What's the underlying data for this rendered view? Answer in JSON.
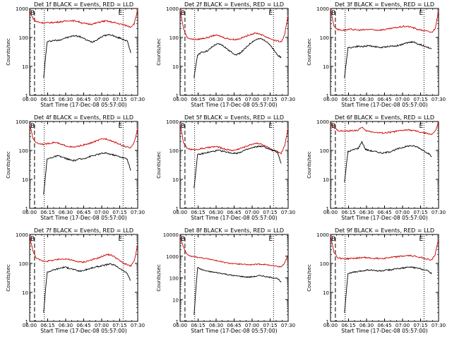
{
  "chart_data": [
    {
      "type": "line",
      "title": "Det 1f BLACK = Events, RED = LLD",
      "xlabel": "Start Time (17-Dec-08 05:57:00)",
      "ylabel": "Counts/sec",
      "x_ticks": [
        "06:00",
        "06:15",
        "06:30",
        "06:45",
        "07:00",
        "07:15",
        "07:30"
      ],
      "y_ticks": [
        "1",
        "10",
        "100",
        "1000"
      ],
      "y_scale": "log",
      "ylim": [
        1,
        1000
      ],
      "markers": [
        "B",
        "E"
      ],
      "series": [
        {
          "color": "#000000",
          "values": [
            null,
            null,
            null,
            null,
            4,
            70,
            75,
            80,
            78,
            85,
            95,
            100,
            110,
            115,
            110,
            100,
            85,
            75,
            70,
            80,
            95,
            110,
            120,
            125,
            115,
            100,
            95,
            85,
            75,
            30,
            null,
            null
          ]
        },
        {
          "color": "#cc0000",
          "values": [
            800,
            450,
            350,
            330,
            320,
            320,
            325,
            330,
            340,
            350,
            360,
            380,
            380,
            370,
            350,
            320,
            300,
            290,
            290,
            310,
            340,
            360,
            370,
            350,
            330,
            310,
            290,
            270,
            250,
            230,
            300,
            900
          ]
        }
      ]
    },
    {
      "type": "line",
      "title": "Det 2f BLACK = Events, RED = LLD",
      "xlabel": "Start Time (17-Dec-08 05:57:00)",
      "ylabel": "Counts/sec",
      "x_ticks": [
        "06:00",
        "06:15",
        "06:30",
        "06:45",
        "07:00",
        "07:15",
        "07:30"
      ],
      "y_ticks": [
        "1",
        "10",
        "100",
        "1000"
      ],
      "y_scale": "log",
      "ylim": [
        1,
        1000
      ],
      "markers": [
        "B",
        "E"
      ],
      "series": [
        {
          "color": "#000000",
          "values": [
            null,
            null,
            null,
            null,
            4,
            25,
            30,
            32,
            35,
            45,
            55,
            60,
            55,
            45,
            35,
            30,
            25,
            28,
            35,
            45,
            60,
            75,
            85,
            90,
            85,
            70,
            50,
            35,
            25,
            20,
            null,
            null
          ]
        },
        {
          "color": "#cc0000",
          "values": [
            900,
            200,
            100,
            90,
            85,
            85,
            90,
            95,
            100,
            110,
            120,
            115,
            105,
            95,
            90,
            85,
            85,
            90,
            100,
            110,
            125,
            135,
            140,
            130,
            115,
            100,
            90,
            80,
            75,
            70,
            120,
            600
          ]
        }
      ]
    },
    {
      "type": "line",
      "title": "Det 3f BLACK = Events, RED = LLD",
      "xlabel": "Start Time (17-Dec-08 05:57:00)",
      "ylabel": "Counts/sec",
      "x_ticks": [
        "06:00",
        "06:15",
        "06:30",
        "06:45",
        "07:00",
        "07:15",
        "07:30"
      ],
      "y_ticks": [
        "1",
        "10",
        "100",
        "1000"
      ],
      "y_scale": "log",
      "ylim": [
        1,
        1000
      ],
      "markers": [
        "B",
        "E"
      ],
      "series": [
        {
          "color": "#000000",
          "values": [
            null,
            null,
            null,
            null,
            4,
            45,
            45,
            48,
            50,
            48,
            50,
            52,
            50,
            48,
            45,
            45,
            48,
            50,
            50,
            52,
            55,
            60,
            65,
            70,
            68,
            60,
            55,
            50,
            45,
            40,
            null,
            null
          ]
        },
        {
          "color": "#cc0000",
          "values": [
            950,
            250,
            190,
            180,
            180,
            185,
            190,
            185,
            180,
            180,
            185,
            190,
            185,
            180,
            180,
            185,
            190,
            200,
            210,
            220,
            230,
            240,
            240,
            230,
            210,
            190,
            180,
            170,
            160,
            150,
            200,
            800
          ]
        }
      ]
    },
    {
      "type": "line",
      "title": "Det 4f BLACK = Events, RED = LLD",
      "xlabel": "Start Time (17-Dec-08 05:57:00)",
      "ylabel": "Counts/sec",
      "x_ticks": [
        "06:00",
        "06:15",
        "06:30",
        "06:45",
        "07:00",
        "07:15",
        "07:30"
      ],
      "y_ticks": [
        "1",
        "10",
        "100",
        "1000"
      ],
      "y_scale": "log",
      "ylim": [
        1,
        1000
      ],
      "markers": [
        "B",
        "E"
      ],
      "series": [
        {
          "color": "#000000",
          "values": [
            null,
            null,
            null,
            null,
            3,
            50,
            55,
            60,
            65,
            60,
            55,
            50,
            45,
            45,
            50,
            50,
            55,
            60,
            65,
            70,
            75,
            80,
            80,
            75,
            70,
            65,
            60,
            55,
            50,
            20,
            null,
            null
          ]
        },
        {
          "color": "#cc0000",
          "values": [
            800,
            250,
            180,
            170,
            165,
            170,
            180,
            190,
            180,
            160,
            150,
            140,
            130,
            130,
            140,
            150,
            160,
            170,
            190,
            210,
            230,
            250,
            250,
            230,
            200,
            180,
            160,
            140,
            130,
            120,
            200,
            550
          ]
        }
      ]
    },
    {
      "type": "line",
      "title": "Det 5f BLACK = Events, RED = LLD",
      "xlabel": "Start Time (17-Dec-08 05:57:00)",
      "ylabel": "Counts/sec",
      "x_ticks": [
        "06:00",
        "06:15",
        "06:30",
        "06:45",
        "07:00",
        "07:15",
        "07:30"
      ],
      "y_ticks": [
        "1",
        "10",
        "100",
        "1000"
      ],
      "y_scale": "log",
      "ylim": [
        1,
        1000
      ],
      "markers": [
        "B",
        "E"
      ],
      "series": [
        {
          "color": "#000000",
          "values": [
            null,
            null,
            null,
            null,
            5,
            70,
            75,
            80,
            85,
            90,
            95,
            100,
            95,
            90,
            85,
            80,
            80,
            85,
            95,
            105,
            115,
            125,
            135,
            140,
            135,
            120,
            105,
            95,
            85,
            35,
            null,
            null
          ]
        },
        {
          "color": "#cc0000",
          "values": [
            850,
            180,
            120,
            110,
            105,
            110,
            115,
            120,
            125,
            130,
            135,
            130,
            120,
            110,
            105,
            100,
            105,
            115,
            125,
            140,
            155,
            170,
            180,
            170,
            150,
            130,
            110,
            100,
            90,
            80,
            150,
            600
          ]
        }
      ]
    },
    {
      "type": "line",
      "title": "Det 6f BLACK = Events, RED = LLD",
      "xlabel": "Start Time (17-Dec-08 05:57:00)",
      "ylabel": "Counts/sec",
      "x_ticks": [
        "06:00",
        "06:15",
        "06:30",
        "06:45",
        "07:00",
        "07:15",
        "07:30"
      ],
      "y_ticks": [
        "1",
        "10",
        "100",
        "1000"
      ],
      "y_scale": "log",
      "ylim": [
        1,
        1000
      ],
      "markers": [
        "B",
        "E"
      ],
      "series": [
        {
          "color": "#000000",
          "values": [
            null,
            null,
            null,
            null,
            8,
            90,
            100,
            110,
            120,
            200,
            110,
            100,
            95,
            90,
            85,
            80,
            85,
            90,
            100,
            110,
            120,
            130,
            140,
            145,
            140,
            130,
            110,
            95,
            80,
            60,
            null,
            null
          ]
        },
        {
          "color": "#cc0000",
          "values": [
            900,
            600,
            500,
            470,
            460,
            470,
            480,
            490,
            500,
            650,
            480,
            460,
            440,
            420,
            410,
            400,
            410,
            420,
            440,
            460,
            480,
            500,
            510,
            500,
            480,
            450,
            420,
            400,
            380,
            360,
            450,
            900
          ]
        }
      ]
    },
    {
      "type": "line",
      "title": "Det 7f BLACK = Events, RED = LLD",
      "xlabel": "Start Time (17-Dec-08 05:57:00)",
      "ylabel": "Counts/sec",
      "x_ticks": [
        "06:00",
        "06:15",
        "06:30",
        "06:45",
        "07:00",
        "07:15",
        "07:30"
      ],
      "y_ticks": [
        "1",
        "10",
        "100",
        "1000"
      ],
      "y_scale": "log",
      "ylim": [
        1,
        1000
      ],
      "markers": [
        "B",
        "E"
      ],
      "series": [
        {
          "color": "#000000",
          "values": [
            null,
            null,
            null,
            null,
            2,
            50,
            55,
            60,
            65,
            70,
            75,
            70,
            65,
            60,
            55,
            55,
            60,
            65,
            70,
            75,
            80,
            85,
            90,
            95,
            90,
            80,
            65,
            55,
            45,
            25,
            null,
            null
          ]
        },
        {
          "color": "#cc0000",
          "values": [
            900,
            250,
            150,
            130,
            120,
            120,
            125,
            130,
            135,
            140,
            145,
            140,
            130,
            120,
            115,
            110,
            115,
            125,
            135,
            145,
            160,
            180,
            200,
            200,
            180,
            150,
            120,
            100,
            90,
            80,
            120,
            450
          ]
        }
      ]
    },
    {
      "type": "line",
      "title": "Det 8f BLACK = Events, RED = LLD",
      "xlabel": "Start Time (17-Dec-08 05:57:00)",
      "ylabel": "Counts/sec",
      "x_ticks": [
        "06:00",
        "06:15",
        "06:30",
        "06:45",
        "07:00",
        "07:15",
        "07:30"
      ],
      "y_ticks": [
        "1",
        "10",
        "100",
        "1000",
        "10000"
      ],
      "y_scale": "log",
      "ylim": [
        1,
        10000
      ],
      "markers": [
        "B",
        "E"
      ],
      "series": [
        {
          "color": "#000000",
          "values": [
            null,
            null,
            null,
            null,
            2,
            300,
            250,
            220,
            200,
            190,
            180,
            170,
            160,
            150,
            140,
            130,
            125,
            120,
            115,
            110,
            110,
            115,
            120,
            130,
            120,
            110,
            105,
            100,
            95,
            60,
            null,
            null
          ]
        },
        {
          "color": "#cc0000",
          "values": [
            8000,
            2500,
            1200,
            1000,
            950,
            900,
            850,
            800,
            750,
            700,
            650,
            600,
            550,
            500,
            480,
            460,
            440,
            430,
            420,
            410,
            400,
            410,
            420,
            430,
            420,
            400,
            380,
            360,
            340,
            320,
            500,
            1200
          ]
        }
      ]
    },
    {
      "type": "line",
      "title": "Det 9f BLACK = Events, RED = LLD",
      "xlabel": "Start Time (17-Dec-08 05:57:00)",
      "ylabel": "Counts/sec",
      "x_ticks": [
        "06:00",
        "06:15",
        "06:30",
        "06:45",
        "07:00",
        "07:15",
        "07:30"
      ],
      "y_ticks": [
        "1",
        "10",
        "100",
        "1000"
      ],
      "y_scale": "log",
      "ylim": [
        1,
        1000
      ],
      "markers": [
        "B",
        "E"
      ],
      "series": [
        {
          "color": "#000000",
          "values": [
            null,
            null,
            null,
            null,
            2,
            45,
            48,
            50,
            52,
            55,
            58,
            60,
            58,
            56,
            55,
            56,
            58,
            60,
            62,
            65,
            68,
            70,
            72,
            75,
            72,
            68,
            65,
            60,
            55,
            45,
            null,
            null
          ]
        },
        {
          "color": "#cc0000",
          "values": [
            900,
            250,
            160,
            150,
            145,
            145,
            150,
            150,
            155,
            160,
            160,
            155,
            150,
            150,
            150,
            150,
            155,
            160,
            165,
            170,
            175,
            180,
            185,
            185,
            180,
            170,
            160,
            150,
            140,
            130,
            200,
            700
          ]
        }
      ]
    }
  ]
}
